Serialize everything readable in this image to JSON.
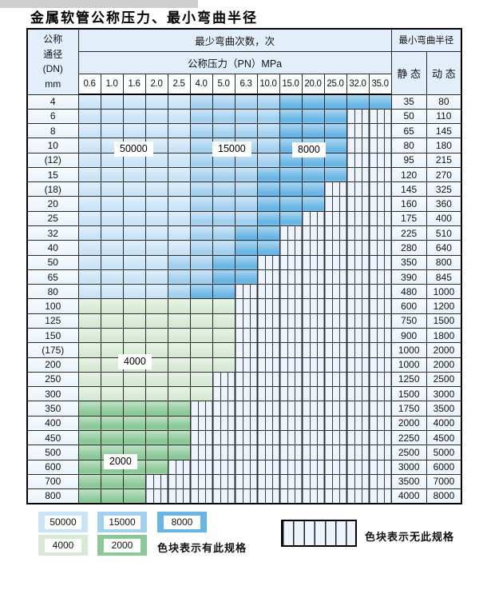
{
  "title": "金属软管公称压力、最小弯曲半径",
  "table": {
    "header": {
      "dn_label_lines": "公称\n通径\n(DN)\nmm",
      "bend_cycles_label": "最少弯曲次数，次",
      "pressure_label": "公称压力（PN）MPa",
      "min_bend_radius_label": "最小弯曲半径",
      "static_label": "静 态",
      "dynamic_label": "动 态",
      "pressure_columns": [
        "0.6",
        "1.0",
        "1.6",
        "2.0",
        "2.5",
        "4.0",
        "5.0",
        "6.3",
        "10.0",
        "15.0",
        "20.0",
        "25.0",
        "32.0",
        "35.0"
      ]
    },
    "spec_codes": {
      "L": "50000",
      "M": "15000",
      "D": "8000",
      "G": "4000",
      "g": "2000",
      "x": "no specification"
    },
    "rows": [
      {
        "dn": "4",
        "spec": "LLLLLMMMMDDDDD",
        "static": "35",
        "dynamic": "80"
      },
      {
        "dn": "6",
        "spec": "LLLLLMMMMDDDxx",
        "static": "50",
        "dynamic": "110"
      },
      {
        "dn": "8",
        "spec": "LLLLLMMMMDDDxx",
        "static": "65",
        "dynamic": "145"
      },
      {
        "dn": "10",
        "spec": "LLLLLMMMMDDDxx",
        "static": "80",
        "dynamic": "180"
      },
      {
        "dn": "(12)",
        "spec": "LLLLLMMMMDDDxx",
        "static": "95",
        "dynamic": "215"
      },
      {
        "dn": "15",
        "spec": "LLLLLMMMDDDDxx",
        "static": "120",
        "dynamic": "270"
      },
      {
        "dn": "(18)",
        "spec": "LLLLLMMMDDDxxx",
        "static": "145",
        "dynamic": "325"
      },
      {
        "dn": "20",
        "spec": "LLLLLMMMDDDxxx",
        "static": "160",
        "dynamic": "360"
      },
      {
        "dn": "25",
        "spec": "LLLLLMMMDDxxxx",
        "static": "175",
        "dynamic": "400"
      },
      {
        "dn": "32",
        "spec": "LLLLLMMDDxxxxx",
        "static": "225",
        "dynamic": "510"
      },
      {
        "dn": "40",
        "spec": "LLLLLMMDDxxxxx",
        "static": "280",
        "dynamic": "640"
      },
      {
        "dn": "50",
        "spec": "LLLLMMDDxxxxxx",
        "static": "350",
        "dynamic": "800"
      },
      {
        "dn": "65",
        "spec": "LLLLMMDDxxxxxx",
        "static": "390",
        "dynamic": "845"
      },
      {
        "dn": "80",
        "spec": "LLLLMDDxxxxxxx",
        "static": "480",
        "dynamic": "1000"
      },
      {
        "dn": "100",
        "spec": "GGGGGGGxxxxxxx",
        "static": "600",
        "dynamic": "1200"
      },
      {
        "dn": "125",
        "spec": "GGGGGGGxxxxxxx",
        "static": "750",
        "dynamic": "1500"
      },
      {
        "dn": "150",
        "spec": "GGGGGGGxxxxxxx",
        "static": "900",
        "dynamic": "1800"
      },
      {
        "dn": "(175)",
        "spec": "GGGGGGGxxxxxxx",
        "static": "1000",
        "dynamic": "2000"
      },
      {
        "dn": "200",
        "spec": "GGGGGGGxxxxxxx",
        "static": "1000",
        "dynamic": "2000"
      },
      {
        "dn": "250",
        "spec": "GGGGGGxxxxxxxx",
        "static": "1250",
        "dynamic": "2500"
      },
      {
        "dn": "300",
        "spec": "GGGGGGxxxxxxxx",
        "static": "1500",
        "dynamic": "3000"
      },
      {
        "dn": "350",
        "spec": "gggggxxxxxxxxx",
        "static": "1750",
        "dynamic": "3500"
      },
      {
        "dn": "400",
        "spec": "gggggxxxxxxxxx",
        "static": "2000",
        "dynamic": "4000"
      },
      {
        "dn": "450",
        "spec": "gggggxxxxxxxxx",
        "static": "2250",
        "dynamic": "4500"
      },
      {
        "dn": "500",
        "spec": "gggggxxxxxxxxx",
        "static": "2500",
        "dynamic": "5000"
      },
      {
        "dn": "600",
        "spec": "ggggxxxxxxxxxx",
        "static": "3000",
        "dynamic": "6000"
      },
      {
        "dn": "700",
        "spec": "gggxxxxxxxxxxx",
        "static": "3500",
        "dynamic": "7000"
      },
      {
        "dn": "800",
        "spec": "gggxxxxxxxxxxx",
        "static": "4000",
        "dynamic": "8000"
      }
    ]
  },
  "zones": [
    {
      "label": "50000"
    },
    {
      "label": "15000"
    },
    {
      "label": "8000"
    },
    {
      "label": "4000"
    },
    {
      "label": "2000"
    }
  ],
  "legend": {
    "items": [
      {
        "label": "50000",
        "color": "#c9e4f7"
      },
      {
        "label": "15000",
        "color": "#a3d0ef"
      },
      {
        "label": "8000",
        "color": "#68b6e5"
      },
      {
        "label": "4000",
        "color": "#d6ead3"
      },
      {
        "label": "2000",
        "color": "#8bc997"
      }
    ],
    "has_spec_text": "色块表示有此规格",
    "no_spec_text": "色块表示无此规格"
  },
  "colors": {
    "L": "#c9e4f7",
    "M": "#a3d0ef",
    "D": "#68b6e5",
    "G": "#d6ead3",
    "g": "#8bc997",
    "hatch_bg": "#edf4fb",
    "header_bg": "#e2eef9",
    "cell_bg": "#ecf4fb"
  }
}
